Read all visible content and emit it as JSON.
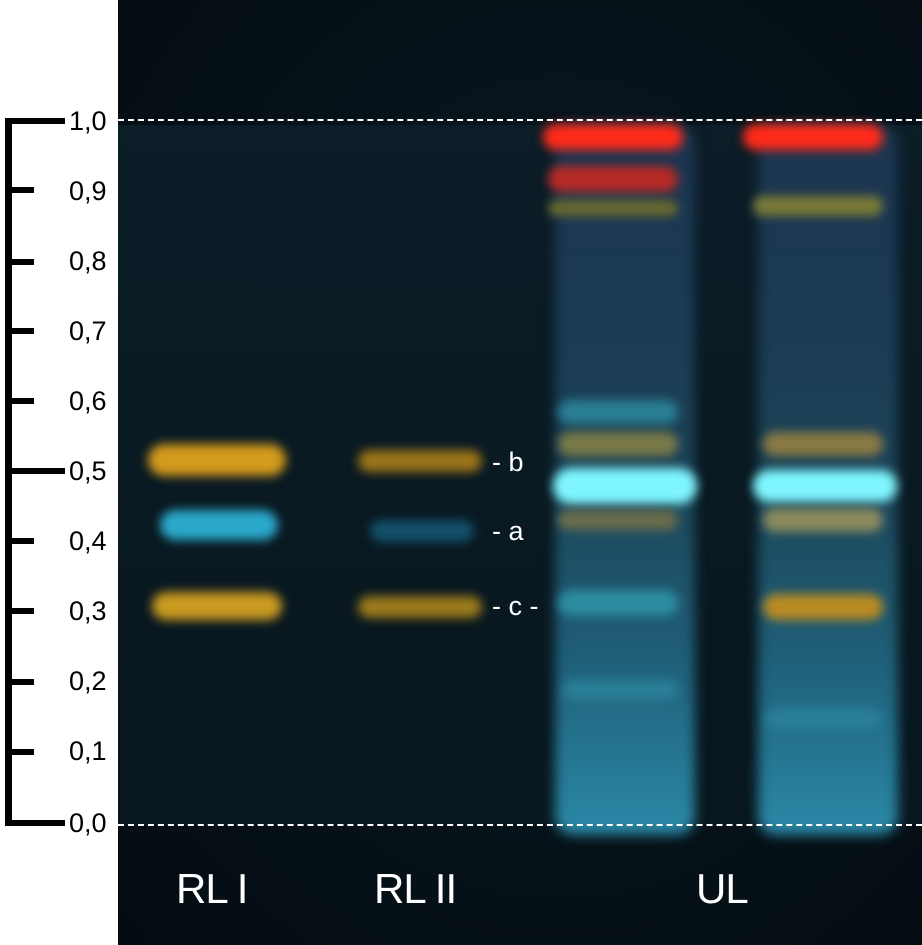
{
  "scale": {
    "ticks": [
      "1,0",
      "0,9",
      "0,8",
      "0,7",
      "0,6",
      "0,5",
      "0,4",
      "0,3",
      "0,2",
      "0,1",
      "0,0"
    ]
  },
  "band_labels": {
    "b": "- b",
    "a": "- a",
    "c": "- c -"
  },
  "lanes": {
    "rl1": "RL I",
    "rl2": "RL II",
    "ul": "UL"
  },
  "colors": {
    "yellow_band": "#d9a21c",
    "blue_band": "#2fb6d8",
    "cyan_bright": "#7ff6ff",
    "red_band": "#ff2a1a",
    "dashed_line": "#ffffff"
  }
}
